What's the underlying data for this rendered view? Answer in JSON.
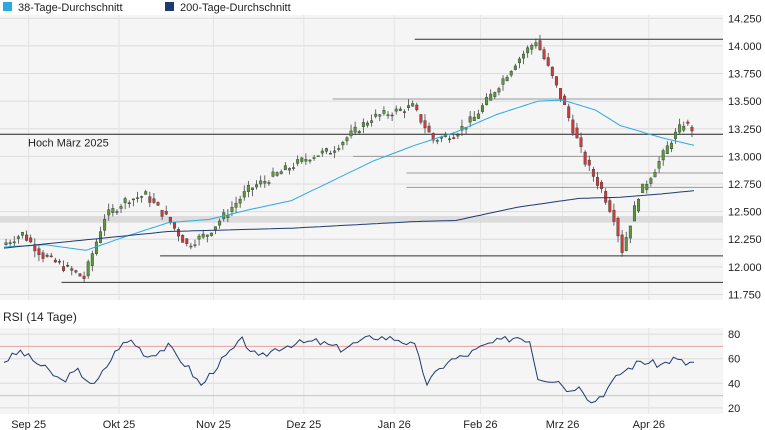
{
  "chart_data": [
    {
      "type": "candlestick",
      "legend": [
        {
          "name": "38-Tage-Durchschnitt",
          "color": "#29abe2"
        },
        {
          "name": "200-Tage-Durchschnitt",
          "color": "#1f3a70"
        }
      ],
      "annotation": "Hoch März 2025",
      "y_ticks": [
        "14.250",
        "14.000",
        "13.750",
        "13.500",
        "13.250",
        "13.000",
        "12.750",
        "12.500",
        "12.250",
        "12.000",
        "11.750"
      ],
      "y_tick_values": [
        14250,
        14000,
        13750,
        13500,
        13250,
        13000,
        12750,
        12500,
        12250,
        12000,
        11750
      ],
      "ylim": [
        11700,
        14280
      ],
      "x_labels": [
        "Sep 25",
        "Okt 25",
        "Nov 25",
        "Dez 25",
        "Jan 26",
        "Feb 26",
        "Mrz 26",
        "Apr 26"
      ],
      "x_label_index": [
        6,
        28,
        51,
        73,
        95,
        116,
        136,
        157
      ],
      "n_bars": 168,
      "hoch_maerz_2025": 13200,
      "support_resistance": [
        14060,
        13520,
        13000,
        12850,
        12720,
        12100,
        11860
      ],
      "ma38_keypoints": [
        [
          0,
          12180
        ],
        [
          10,
          12200
        ],
        [
          20,
          12150
        ],
        [
          30,
          12280
        ],
        [
          40,
          12400
        ],
        [
          50,
          12430
        ],
        [
          60,
          12520
        ],
        [
          70,
          12600
        ],
        [
          80,
          12780
        ],
        [
          90,
          12960
        ],
        [
          100,
          13100
        ],
        [
          110,
          13220
        ],
        [
          120,
          13380
        ],
        [
          130,
          13500
        ],
        [
          136,
          13510
        ],
        [
          144,
          13420
        ],
        [
          150,
          13280
        ],
        [
          160,
          13170
        ],
        [
          168,
          13100
        ]
      ],
      "ma200_keypoints": [
        [
          0,
          12170
        ],
        [
          40,
          12320
        ],
        [
          70,
          12350
        ],
        [
          100,
          12410
        ],
        [
          110,
          12420
        ],
        [
          125,
          12540
        ],
        [
          140,
          12620
        ],
        [
          150,
          12630
        ],
        [
          160,
          12660
        ],
        [
          168,
          12690
        ]
      ],
      "candle_keypoints": [
        [
          0,
          12200
        ],
        [
          5,
          12300
        ],
        [
          10,
          12100
        ],
        [
          15,
          12000
        ],
        [
          20,
          11900
        ],
        [
          25,
          12450
        ],
        [
          30,
          12600
        ],
        [
          35,
          12650
        ],
        [
          40,
          12450
        ],
        [
          45,
          12200
        ],
        [
          50,
          12300
        ],
        [
          55,
          12500
        ],
        [
          60,
          12700
        ],
        [
          65,
          12800
        ],
        [
          70,
          12900
        ],
        [
          75,
          13000
        ],
        [
          80,
          13050
        ],
        [
          85,
          13200
        ],
        [
          90,
          13350
        ],
        [
          95,
          13400
        ],
        [
          100,
          13450
        ],
        [
          105,
          13150
        ],
        [
          110,
          13200
        ],
        [
          115,
          13350
        ],
        [
          120,
          13600
        ],
        [
          125,
          13850
        ],
        [
          130,
          14050
        ],
        [
          133,
          13800
        ],
        [
          137,
          13450
        ],
        [
          142,
          12950
        ],
        [
          146,
          12700
        ],
        [
          149,
          12450
        ],
        [
          151,
          12150
        ],
        [
          155,
          12650
        ],
        [
          160,
          12950
        ],
        [
          163,
          13150
        ],
        [
          166,
          13300
        ],
        [
          168,
          13250
        ]
      ]
    },
    {
      "type": "line",
      "title": "RSI (14 Tage)",
      "y_ticks": [
        "80",
        "60",
        "40",
        "20"
      ],
      "y_tick_values": [
        80,
        60,
        40,
        20
      ],
      "ylim": [
        15,
        85
      ],
      "reference_lines": [
        {
          "value": 70,
          "color": "#e8a0a0"
        },
        {
          "value": 30,
          "color": "#a8d8a0"
        }
      ],
      "series": [
        {
          "color": "#1f3a70",
          "keypoints": [
            [
              0,
              58
            ],
            [
              4,
              66
            ],
            [
              10,
              52
            ],
            [
              14,
              42
            ],
            [
              18,
              50
            ],
            [
              22,
              38
            ],
            [
              28,
              70
            ],
            [
              31,
              75
            ],
            [
              35,
              62
            ],
            [
              40,
              70
            ],
            [
              45,
              52
            ],
            [
              48,
              38
            ],
            [
              52,
              55
            ],
            [
              58,
              75
            ],
            [
              62,
              60
            ],
            [
              66,
              68
            ],
            [
              70,
              72
            ],
            [
              76,
              74
            ],
            [
              82,
              68
            ],
            [
              90,
              78
            ],
            [
              96,
              76
            ],
            [
              100,
              70
            ],
            [
              103,
              40
            ],
            [
              108,
              58
            ],
            [
              112,
              62
            ],
            [
              118,
              72
            ],
            [
              125,
              78
            ],
            [
              128,
              75
            ],
            [
              130,
              45
            ],
            [
              135,
              42
            ],
            [
              138,
              33
            ],
            [
              140,
              40
            ],
            [
              143,
              24
            ],
            [
              146,
              32
            ],
            [
              150,
              48
            ],
            [
              155,
              58
            ],
            [
              160,
              55
            ],
            [
              163,
              60
            ],
            [
              166,
              56
            ],
            [
              168,
              57
            ]
          ]
        }
      ]
    }
  ]
}
